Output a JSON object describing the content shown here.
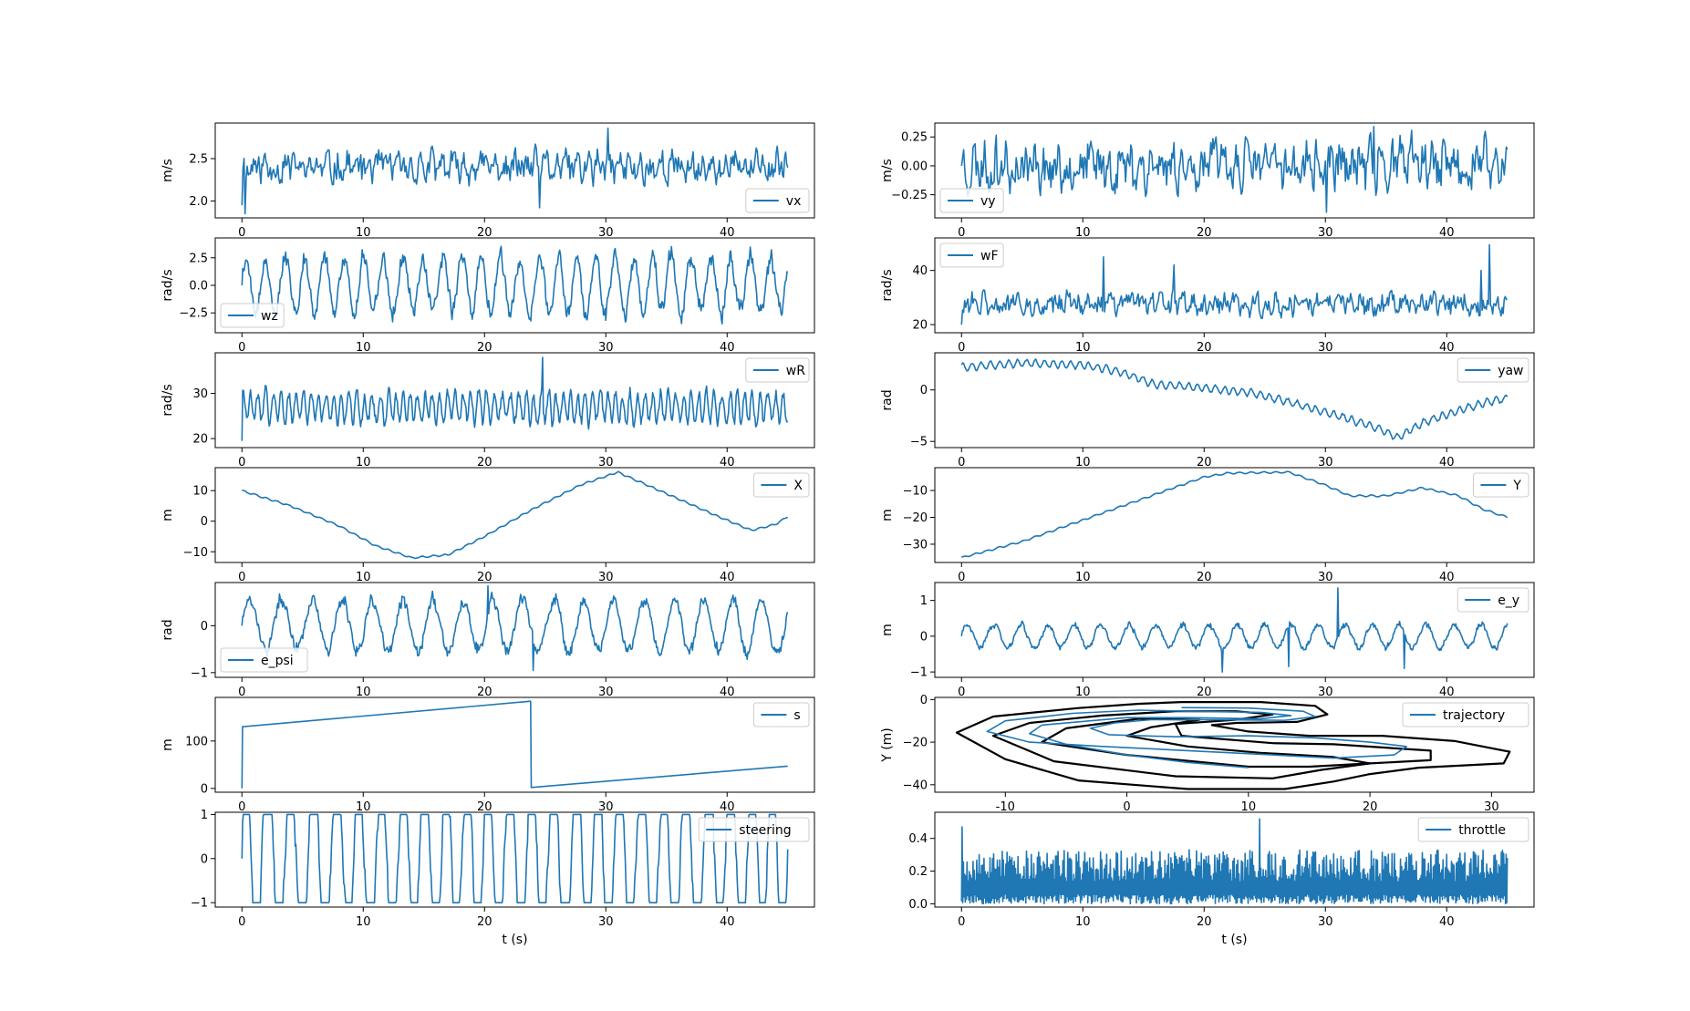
{
  "figure": {
    "columns": 2,
    "rows": 7,
    "series_color": "#1f77b4",
    "track_color": "#000000"
  },
  "chart_data": [
    {
      "id": "vx",
      "type": "line",
      "panel": [
        0,
        0
      ],
      "ylabel": "m/s",
      "xlabel": "",
      "legend": "vx",
      "legend_loc": "lower-right",
      "xlim": [
        -2.2,
        47.2
      ],
      "ylim": [
        1.8,
        2.92
      ],
      "xticks": [
        0,
        10,
        20,
        30,
        40
      ],
      "yticks": [
        2.0,
        2.5
      ],
      "ytick_fmt": 1,
      "gen": {
        "kind": "noise",
        "x0": 0,
        "x1": 45,
        "mean": 2.4,
        "amp": 0.18,
        "seed": 11,
        "start": 1.95,
        "spikes": [
          [
            30.2,
            2.86
          ],
          [
            0.3,
            1.85
          ],
          [
            24.5,
            1.92
          ]
        ]
      }
    },
    {
      "id": "vy",
      "type": "line",
      "panel": [
        0,
        1
      ],
      "ylabel": "m/s",
      "xlabel": "",
      "legend": "vy",
      "legend_loc": "lower-left",
      "xlim": [
        -2.2,
        47.2
      ],
      "ylim": [
        -0.45,
        0.37
      ],
      "xticks": [
        0,
        10,
        20,
        30,
        40
      ],
      "yticks": [
        -0.25,
        0.0,
        0.25
      ],
      "ytick_fmt": 2,
      "gen": {
        "kind": "noise",
        "x0": 0,
        "x1": 45,
        "mean": 0.0,
        "amp": 0.2,
        "seed": 23,
        "start": 0.0,
        "spikes": [
          [
            30.1,
            -0.4
          ],
          [
            34.0,
            0.34
          ]
        ]
      }
    },
    {
      "id": "wz",
      "type": "line",
      "panel": [
        1,
        0
      ],
      "ylabel": "rad/s",
      "xlabel": "",
      "legend": "wz",
      "legend_loc": "lower-left",
      "xlim": [
        -2.2,
        47.2
      ],
      "ylim": [
        -4.3,
        4.3
      ],
      "xticks": [
        0,
        10,
        20,
        30,
        40
      ],
      "yticks": [
        -2.5,
        0.0,
        2.5
      ],
      "ytick_fmt": 1,
      "gen": {
        "kind": "oscnoise",
        "x0": 0,
        "x1": 45,
        "mean": 0.0,
        "amp": 2.7,
        "freq": 0.62,
        "noise": 1.1,
        "seed": 5,
        "start": 0.0
      }
    },
    {
      "id": "wF",
      "type": "line",
      "panel": [
        1,
        1
      ],
      "ylabel": "rad/s",
      "xlabel": "",
      "legend": "wF",
      "legend_loc": "upper-left",
      "xlim": [
        -2.2,
        47.2
      ],
      "ylim": [
        17.0,
        52.0
      ],
      "xticks": [
        0,
        10,
        20,
        30,
        40
      ],
      "yticks": [
        20,
        40
      ],
      "ytick_fmt": 0,
      "gen": {
        "kind": "noise",
        "x0": 0,
        "x1": 45,
        "mean": 27.5,
        "amp": 4.0,
        "seed": 31,
        "start": 20.0,
        "spikes": [
          [
            11.7,
            45.0
          ],
          [
            17.5,
            42.0
          ],
          [
            43.5,
            49.5
          ],
          [
            42.8,
            40.0
          ]
        ]
      }
    },
    {
      "id": "wR",
      "type": "line",
      "panel": [
        2,
        0
      ],
      "ylabel": "rad/s",
      "xlabel": "",
      "legend": "wR",
      "legend_loc": "upper-right",
      "xlim": [
        -2.2,
        47.2
      ],
      "ylim": [
        18.0,
        39.0
      ],
      "xticks": [
        0,
        10,
        20,
        30,
        40
      ],
      "yticks": [
        20,
        30
      ],
      "ytick_fmt": 0,
      "gen": {
        "kind": "oscnoise",
        "x0": 0,
        "x1": 45,
        "mean": 27.0,
        "amp": 3.5,
        "freq": 1.6,
        "noise": 2.0,
        "seed": 47,
        "start": 19.5,
        "spikes": [
          [
            24.8,
            38.0
          ]
        ]
      }
    },
    {
      "id": "yaw",
      "type": "line",
      "panel": [
        2,
        1
      ],
      "ylabel": "rad",
      "xlabel": "",
      "legend": "yaw",
      "legend_loc": "upper-right",
      "xlim": [
        -2.2,
        47.2
      ],
      "ylim": [
        -5.6,
        3.6
      ],
      "xticks": [
        0,
        10,
        20,
        30,
        40
      ],
      "yticks": [
        -5,
        0
      ],
      "ytick_fmt": 0,
      "gen": {
        "kind": "waypoints",
        "x0": 0,
        "x1": 45,
        "ripple": 0.42,
        "rfreq": 1.35,
        "seed": 3,
        "points": [
          [
            0,
            2.2
          ],
          [
            5,
            2.6
          ],
          [
            10,
            2.4
          ],
          [
            13,
            1.8
          ],
          [
            16,
            0.5
          ],
          [
            20,
            0.2
          ],
          [
            24,
            -0.3
          ],
          [
            27,
            -1.2
          ],
          [
            31,
            -2.5
          ],
          [
            34,
            -3.6
          ],
          [
            36,
            -4.6
          ],
          [
            38,
            -3.2
          ],
          [
            41,
            -2.0
          ],
          [
            43,
            -1.3
          ],
          [
            45,
            -0.8
          ]
        ]
      }
    },
    {
      "id": "X",
      "type": "line",
      "panel": [
        3,
        0
      ],
      "ylabel": "m",
      "xlabel": "",
      "legend": "X",
      "legend_loc": "upper-right",
      "xlim": [
        -2.2,
        47.2
      ],
      "ylim": [
        -13.5,
        17.5
      ],
      "xticks": [
        0,
        10,
        20,
        30,
        40
      ],
      "yticks": [
        -10,
        0,
        10
      ],
      "ytick_fmt": 0,
      "gen": {
        "kind": "waypoints",
        "x0": 0,
        "x1": 45,
        "ripple": 0.3,
        "rfreq": 1.1,
        "seed": 9,
        "points": [
          [
            0,
            10
          ],
          [
            4,
            5
          ],
          [
            8,
            -1.5
          ],
          [
            11,
            -8
          ],
          [
            14,
            -12
          ],
          [
            17,
            -11
          ],
          [
            20,
            -5
          ],
          [
            24,
            4
          ],
          [
            28,
            12
          ],
          [
            31,
            16
          ],
          [
            35,
            9
          ],
          [
            39,
            2
          ],
          [
            42,
            -3
          ],
          [
            44,
            -1
          ],
          [
            45,
            1.5
          ]
        ]
      }
    },
    {
      "id": "Y",
      "type": "line",
      "panel": [
        3,
        1
      ],
      "ylabel": "m",
      "xlabel": "",
      "legend": "Y",
      "legend_loc": "upper-right",
      "xlim": [
        -2.2,
        47.2
      ],
      "ylim": [
        -36.8,
        -1.5
      ],
      "xticks": [
        0,
        10,
        20,
        30,
        40
      ],
      "yticks": [
        -30,
        -20,
        -10
      ],
      "ytick_fmt": 0,
      "gen": {
        "kind": "waypoints",
        "x0": 0,
        "x1": 45,
        "ripple": 0.35,
        "rfreq": 1.0,
        "seed": 13,
        "points": [
          [
            0,
            -35
          ],
          [
            5,
            -29
          ],
          [
            10,
            -21
          ],
          [
            15,
            -13
          ],
          [
            20,
            -5
          ],
          [
            22,
            -3.5
          ],
          [
            27,
            -3.2
          ],
          [
            30,
            -8
          ],
          [
            32,
            -12
          ],
          [
            35,
            -12
          ],
          [
            38,
            -9
          ],
          [
            41,
            -12
          ],
          [
            43,
            -17
          ],
          [
            45,
            -20
          ]
        ]
      }
    },
    {
      "id": "e_psi",
      "type": "line",
      "panel": [
        4,
        0
      ],
      "ylabel": "rad",
      "xlabel": "",
      "legend": "e_psi",
      "legend_loc": "lower-left",
      "xlim": [
        -2.2,
        47.2
      ],
      "ylim": [
        -1.1,
        0.92
      ],
      "xticks": [
        0,
        10,
        20,
        30,
        40
      ],
      "yticks": [
        -1,
        0
      ],
      "ytick_fmt": 0,
      "gen": {
        "kind": "oscnoise",
        "x0": 0,
        "x1": 45,
        "mean": 0.0,
        "amp": 0.6,
        "freq": 0.4,
        "noise": 0.15,
        "seed": 17,
        "start": 0.0,
        "spikes": [
          [
            20.3,
            0.85
          ],
          [
            24.0,
            -0.95
          ]
        ]
      }
    },
    {
      "id": "e_y",
      "type": "line",
      "panel": [
        4,
        1
      ],
      "ylabel": "m",
      "xlabel": "",
      "legend": "e_y",
      "legend_loc": "upper-right",
      "xlim": [
        -2.2,
        47.2
      ],
      "ylim": [
        -1.15,
        1.5
      ],
      "xticks": [
        0,
        10,
        20,
        30,
        40
      ],
      "yticks": [
        -1,
        0,
        1
      ],
      "ytick_fmt": 0,
      "gen": {
        "kind": "oscnoise",
        "x0": 0,
        "x1": 45,
        "mean": 0.0,
        "amp": 0.35,
        "freq": 0.45,
        "noise": 0.1,
        "seed": 29,
        "start": 0.0,
        "spikes": [
          [
            31.0,
            1.35
          ],
          [
            21.5,
            -1.0
          ],
          [
            36.5,
            -0.9
          ],
          [
            27.0,
            -0.85
          ]
        ]
      }
    },
    {
      "id": "s",
      "type": "line",
      "panel": [
        5,
        0
      ],
      "ylabel": "m",
      "xlabel": "",
      "legend": "s",
      "legend_loc": "upper-right",
      "xlim": [
        -2.2,
        47.2
      ],
      "ylim": [
        -8,
        192
      ],
      "xticks": [
        0,
        10,
        20,
        30,
        40
      ],
      "yticks": [
        0,
        100
      ],
      "ytick_fmt": 0,
      "x": [
        0,
        0.05,
        23.8,
        23.85,
        45
      ],
      "y": [
        0,
        130,
        184,
        2,
        47
      ]
    },
    {
      "id": "trajectory",
      "type": "line",
      "panel": [
        5,
        1
      ],
      "ylabel": "Y (m)",
      "xlabel": "",
      "legend": "trajectory",
      "legend_loc": "upper-right",
      "xlim": [
        -15.8,
        33.5
      ],
      "ylim": [
        -43.5,
        1.0
      ],
      "xticks": [
        -10,
        0,
        10,
        20,
        30
      ],
      "yticks": [
        -40,
        -20,
        0
      ],
      "ytick_fmt": 0,
      "tracks": [
        [
          [
            4.5,
            -1.2
          ],
          [
            11,
            -1.2
          ],
          [
            15.5,
            -3
          ],
          [
            16.5,
            -7
          ],
          [
            14,
            -10.5
          ],
          [
            9,
            -11
          ],
          [
            7,
            -12
          ],
          [
            10,
            -15
          ],
          [
            15,
            -17
          ],
          [
            21,
            -17
          ],
          [
            27,
            -19.5
          ],
          [
            31.5,
            -24.5
          ],
          [
            31,
            -30
          ],
          [
            24,
            -32
          ],
          [
            20,
            -35
          ],
          [
            17,
            -38.5
          ],
          [
            13,
            -42
          ],
          [
            5,
            -42
          ],
          [
            -4,
            -38
          ],
          [
            -10,
            -28
          ],
          [
            -14,
            -15.5
          ],
          [
            -11,
            -8
          ],
          [
            -4,
            -4
          ],
          [
            1,
            -2
          ],
          [
            4.5,
            -1.2
          ]
        ],
        [
          [
            4,
            -5.5
          ],
          [
            9,
            -5.5
          ],
          [
            12,
            -7
          ],
          [
            9,
            -9.5
          ],
          [
            4,
            -11.5
          ],
          [
            4.5,
            -17
          ],
          [
            12,
            -20.5
          ],
          [
            17,
            -21
          ],
          [
            25,
            -24
          ],
          [
            25,
            -28.5
          ],
          [
            20,
            -30
          ],
          [
            16,
            -33
          ],
          [
            12,
            -37
          ],
          [
            4,
            -36
          ],
          [
            -6,
            -29
          ],
          [
            -11,
            -17
          ],
          [
            -8,
            -11
          ],
          [
            -2,
            -7.5
          ],
          [
            4,
            -5.5
          ]
        ],
        [
          [
            1,
            -9
          ],
          [
            6,
            -9.5
          ],
          [
            2,
            -13
          ],
          [
            0,
            -17
          ],
          [
            5,
            -22
          ],
          [
            11,
            -25
          ],
          [
            17,
            -27
          ],
          [
            20,
            -30
          ],
          [
            15,
            -31.5
          ],
          [
            10,
            -31.5
          ],
          [
            0,
            -26
          ],
          [
            -7,
            -20
          ],
          [
            -5,
            -13.5
          ],
          [
            1,
            -9
          ]
        ]
      ],
      "path": [
        [
          4.5,
          -3.8
        ],
        [
          10,
          -4
        ],
        [
          14.5,
          -5.5
        ],
        [
          15.5,
          -8
        ],
        [
          13,
          -9.8
        ],
        [
          7,
          -9.5
        ],
        [
          2,
          -9.5
        ],
        [
          -1,
          -11
        ],
        [
          -3,
          -13.5
        ],
        [
          -1.5,
          -16.5
        ],
        [
          4,
          -17.5
        ],
        [
          10,
          -17
        ],
        [
          15.5,
          -18
        ],
        [
          20,
          -20
        ],
        [
          23,
          -22
        ],
        [
          22,
          -26
        ],
        [
          17,
          -27.5
        ],
        [
          12,
          -26
        ],
        [
          5,
          -24
        ],
        [
          -2,
          -22
        ],
        [
          -8,
          -20
        ],
        [
          -11.5,
          -15
        ],
        [
          -10,
          -10
        ],
        [
          -4.5,
          -6.5
        ],
        [
          1,
          -5
        ],
        [
          5,
          -5.5
        ],
        [
          11,
          -6
        ],
        [
          13.5,
          -7.5
        ],
        [
          11,
          -9
        ],
        [
          5,
          -8.5
        ],
        [
          0,
          -8.5
        ],
        [
          -3,
          -10
        ],
        [
          -7,
          -12
        ],
        [
          -8,
          -16
        ],
        [
          -5,
          -21
        ],
        [
          0,
          -26
        ],
        [
          5,
          -29.5
        ],
        [
          10,
          -32
        ]
      ]
    },
    {
      "id": "steering",
      "type": "line",
      "panel": [
        6,
        0
      ],
      "ylabel": "",
      "xlabel": "t (s)",
      "legend": "steering",
      "legend_loc": "upper-right",
      "xlim": [
        -2.2,
        47.2
      ],
      "ylim": [
        -1.1,
        1.05
      ],
      "xticks": [
        0,
        10,
        20,
        30,
        40
      ],
      "yticks": [
        -1,
        0,
        1
      ],
      "ytick_fmt": 0,
      "gen": {
        "kind": "clipwave",
        "x0": 0,
        "x1": 45,
        "amp": 2.2,
        "freq": 0.55,
        "noise": 0.35,
        "seed": 41,
        "start": 0.0
      }
    },
    {
      "id": "throttle",
      "type": "line",
      "panel": [
        6,
        1
      ],
      "ylabel": "",
      "xlabel": "t (s)",
      "legend": "throttle",
      "legend_loc": "upper-right",
      "xlim": [
        -2.2,
        47.2
      ],
      "ylim": [
        -0.02,
        0.56
      ],
      "xticks": [
        0,
        10,
        20,
        30,
        40
      ],
      "yticks": [
        0.0,
        0.2,
        0.4
      ],
      "ytick_fmt": 1,
      "gen": {
        "kind": "bounce",
        "x0": 0,
        "x1": 45,
        "lo": 0.0,
        "hi": 0.33,
        "seed": 53,
        "spikes": [
          [
            0.05,
            0.47
          ],
          [
            24.6,
            0.52
          ]
        ]
      }
    }
  ]
}
